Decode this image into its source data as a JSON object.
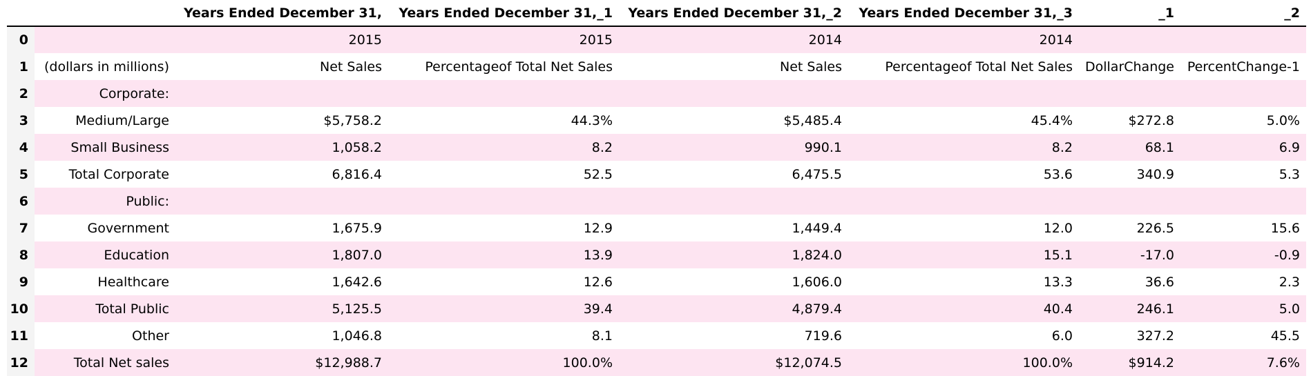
{
  "table": {
    "columns": [
      "",
      "",
      "Years Ended December 31,",
      "Years Ended December 31,_1",
      "Years Ended December 31,_2",
      "Years Ended December 31,_3",
      "_1",
      "_2"
    ],
    "rows": [
      {
        "index": "0",
        "cells": [
          "",
          "2015",
          "2015",
          "2014",
          "2014",
          "",
          ""
        ]
      },
      {
        "index": "1",
        "cells": [
          "(dollars in millions)",
          "Net Sales",
          "Percentageof Total Net Sales",
          "Net Sales",
          "Percentageof Total Net Sales",
          "DollarChange",
          "PercentChange-1"
        ]
      },
      {
        "index": "2",
        "cells": [
          "Corporate:",
          "",
          "",
          "",
          "",
          "",
          ""
        ]
      },
      {
        "index": "3",
        "cells": [
          "Medium/Large",
          "$5,758.2",
          "44.3%",
          "$5,485.4",
          "45.4%",
          "$272.8",
          "5.0%"
        ]
      },
      {
        "index": "4",
        "cells": [
          "Small Business",
          "1,058.2",
          "8.2",
          "990.1",
          "8.2",
          "68.1",
          "6.9"
        ]
      },
      {
        "index": "5",
        "cells": [
          "Total Corporate",
          "6,816.4",
          "52.5",
          "6,475.5",
          "53.6",
          "340.9",
          "5.3"
        ]
      },
      {
        "index": "6",
        "cells": [
          "Public:",
          "",
          "",
          "",
          "",
          "",
          ""
        ]
      },
      {
        "index": "7",
        "cells": [
          "Government",
          "1,675.9",
          "12.9",
          "1,449.4",
          "12.0",
          "226.5",
          "15.6"
        ]
      },
      {
        "index": "8",
        "cells": [
          "Education",
          "1,807.0",
          "13.9",
          "1,824.0",
          "15.1",
          "-17.0",
          "-0.9"
        ]
      },
      {
        "index": "9",
        "cells": [
          "Healthcare",
          "1,642.6",
          "12.6",
          "1,606.0",
          "13.3",
          "36.6",
          "2.3"
        ]
      },
      {
        "index": "10",
        "cells": [
          "Total Public",
          "5,125.5",
          "39.4",
          "4,879.4",
          "40.4",
          "246.1",
          "5.0"
        ]
      },
      {
        "index": "11",
        "cells": [
          "Other",
          "1,046.8",
          "8.1",
          "719.6",
          "6.0",
          "327.2",
          "45.5"
        ]
      },
      {
        "index": "12",
        "cells": [
          "Total Net sales",
          "$12,988.7",
          "100.0%",
          "$12,074.5",
          "100.0%",
          "$914.2",
          "7.6%"
        ]
      }
    ]
  }
}
